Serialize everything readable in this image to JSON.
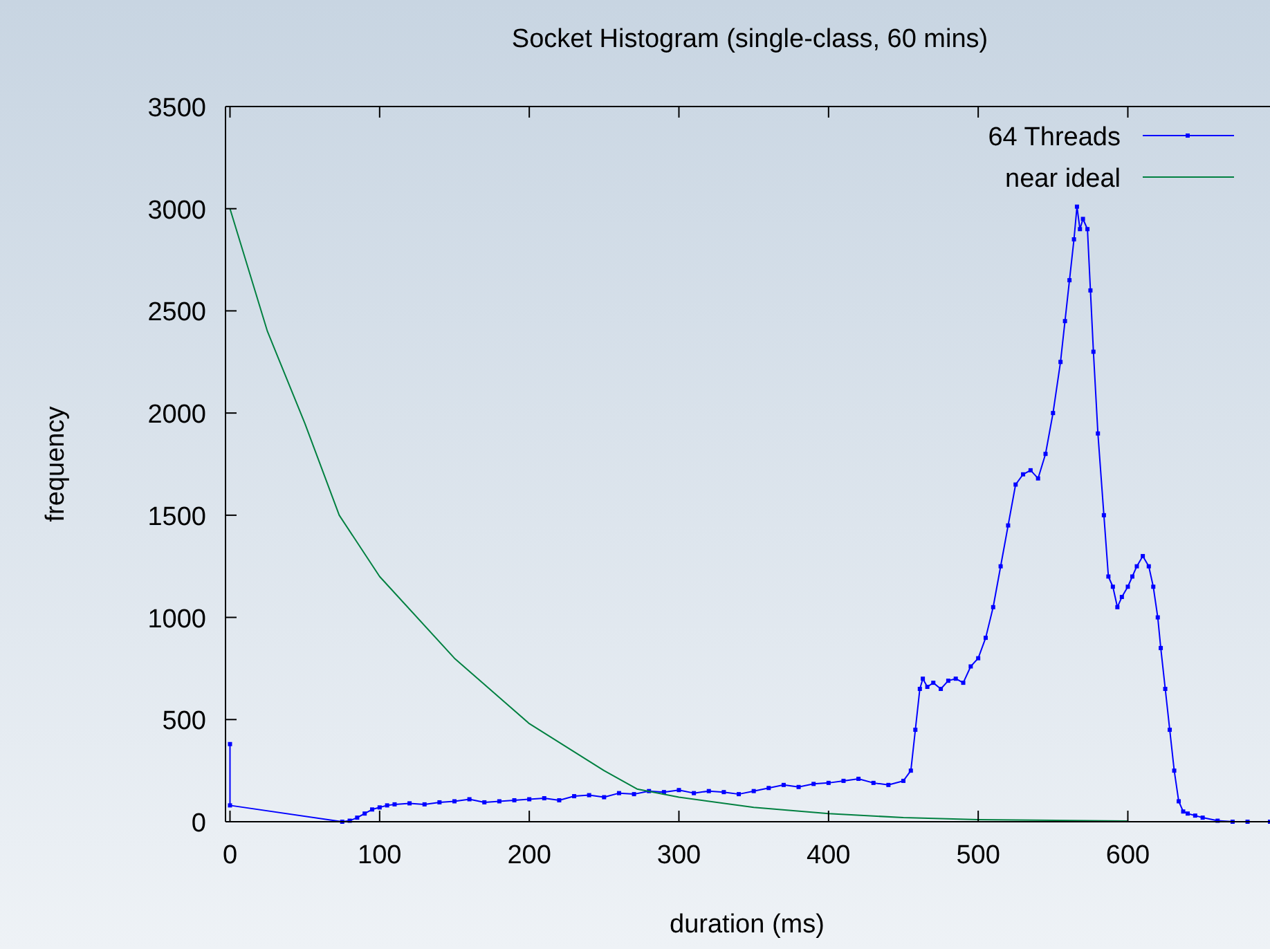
{
  "chart_data": {
    "type": "line",
    "title": "Socket Histogram (single-class, 60 mins)",
    "xlabel": "duration (ms)",
    "ylabel": "frequency",
    "xlim": [
      -3,
      695
    ],
    "ylim": [
      0,
      3500
    ],
    "xticks": [
      0,
      100,
      200,
      300,
      400,
      500,
      600
    ],
    "yticks": [
      0,
      500,
      1000,
      1500,
      2000,
      2500,
      3000,
      3500
    ],
    "grid": false,
    "legend": "top right",
    "series": [
      {
        "name": "64 Threads",
        "color": "#0000ff",
        "marker": "square",
        "x": [
          0,
          0,
          75,
          80,
          85,
          90,
          95,
          100,
          105,
          110,
          120,
          130,
          140,
          150,
          160,
          170,
          180,
          190,
          200,
          210,
          220,
          230,
          240,
          250,
          260,
          270,
          280,
          290,
          300,
          310,
          320,
          330,
          340,
          350,
          360,
          370,
          380,
          390,
          400,
          410,
          420,
          430,
          440,
          450,
          455,
          458,
          461,
          463,
          466,
          470,
          475,
          480,
          485,
          490,
          495,
          500,
          505,
          510,
          515,
          520,
          525,
          530,
          535,
          540,
          545,
          550,
          555,
          558,
          561,
          564,
          566,
          568,
          570,
          573,
          575,
          577,
          580,
          584,
          587,
          590,
          593,
          596,
          600,
          603,
          606,
          610,
          614,
          617,
          620,
          622,
          625,
          628,
          631,
          634,
          637,
          640,
          645,
          650,
          660,
          670,
          680,
          695
        ],
        "values": [
          380,
          80,
          0,
          5,
          20,
          40,
          60,
          70,
          80,
          85,
          90,
          85,
          95,
          100,
          110,
          95,
          100,
          105,
          110,
          115,
          105,
          125,
          130,
          120,
          140,
          135,
          150,
          145,
          155,
          140,
          150,
          145,
          135,
          150,
          165,
          180,
          170,
          185,
          190,
          200,
          210,
          190,
          180,
          200,
          250,
          450,
          650,
          700,
          660,
          680,
          650,
          690,
          700,
          680,
          760,
          800,
          900,
          1050,
          1250,
          1450,
          1650,
          1700,
          1720,
          1680,
          1800,
          2000,
          2250,
          2450,
          2650,
          2850,
          3010,
          2900,
          2950,
          2900,
          2600,
          2300,
          1900,
          1500,
          1200,
          1150,
          1050,
          1100,
          1150,
          1200,
          1250,
          1300,
          1250,
          1150,
          1000,
          850,
          650,
          450,
          250,
          100,
          50,
          40,
          30,
          20,
          5,
          0,
          0,
          0
        ]
      },
      {
        "name": "near ideal",
        "color": "#008040",
        "marker": "none",
        "x": [
          0,
          25,
          50,
          73,
          100,
          150,
          200,
          250,
          272,
          300,
          350,
          400,
          450,
          500,
          600
        ],
        "values": [
          3000,
          2400,
          1950,
          1500,
          1200,
          800,
          480,
          250,
          160,
          120,
          70,
          40,
          20,
          10,
          3
        ]
      }
    ]
  }
}
